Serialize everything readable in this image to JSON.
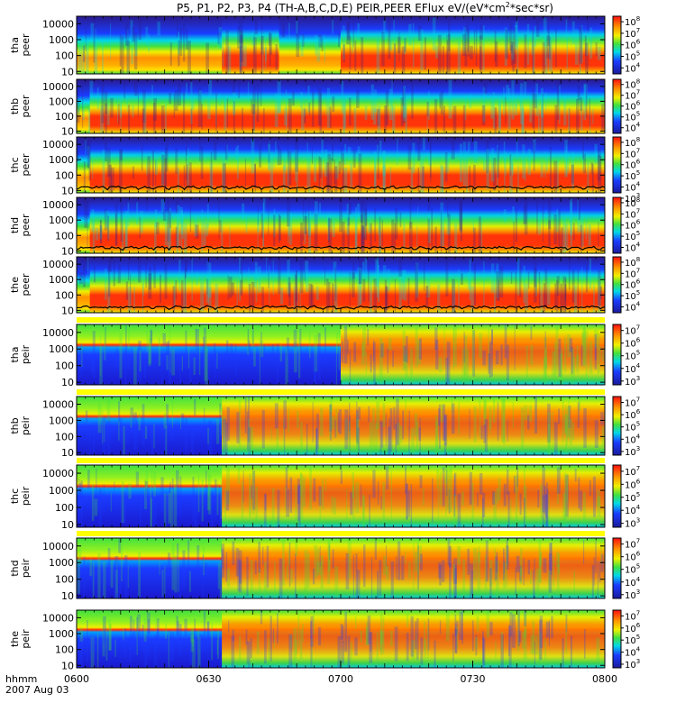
{
  "title": "P5, P1, P2, P3, P4 (TH-A,B,C,D,E) PEIR,PEER EFlux eV/(eV*cm^2*sec*sr)",
  "title_parts": {
    "main": "P5, P1, P2, P3, P4 (TH-A,B,C,D,E) PEIR,PEER EFlux eV/(eV*cm",
    "sup": "2",
    "tail": "*sec*sr)"
  },
  "time_axis": {
    "label": "hhmm",
    "date": "2007 Aug 03",
    "ticks": [
      "0600",
      "0630",
      "0700",
      "0730",
      "0800"
    ],
    "range_minutes": [
      0,
      120
    ]
  },
  "colors": {
    "low": "#2a1a8a",
    "blue": "#1a3cff",
    "cyan": "#00d8e8",
    "green": "#40e040",
    "yellow": "#f0f000",
    "orange": "#ff9000",
    "red": "#ff2a0a",
    "fill_band": "#ffff00"
  },
  "chart_data": {
    "type": "heatmap",
    "x_unit": "minutes after 0600 UT",
    "y_scale": "log",
    "y_unit": "eV",
    "z_scale": "log",
    "z_unit": "eV/(eV*cm^2*sec*sr)",
    "panels": [
      {
        "probe": "tha",
        "species": "peer",
        "label": [
          "tha",
          "peer"
        ],
        "ylim": [
          7,
          30000
        ],
        "yticks": [
          "10000",
          "1000",
          "100",
          "10"
        ],
        "zticks": [
          "10",
          "10",
          "10",
          "10",
          "10",
          "10"
        ],
        "zexp": [
          "8",
          "7",
          "6",
          "5",
          "4",
          ""
        ],
        "zlim": [
          3000,
          300000000
        ],
        "hot_intervals": [
          [
            33,
            46
          ],
          [
            60,
            120
          ]
        ],
        "overlay_line": false
      },
      {
        "probe": "thb",
        "species": "peer",
        "label": [
          "thb",
          "peer"
        ],
        "ylim": [
          7,
          30000
        ],
        "yticks": [
          "10000",
          "1000",
          "100",
          "10"
        ],
        "zticks": [
          "10",
          "10",
          "10",
          "10",
          "10",
          "10"
        ],
        "zexp": [
          "8",
          "7",
          "6",
          "5",
          "4",
          ""
        ],
        "zlim": [
          3000,
          300000000
        ],
        "hot_intervals": [
          [
            3,
            120
          ]
        ],
        "overlay_line": false
      },
      {
        "probe": "thc",
        "species": "peer",
        "label": [
          "thc",
          "peer"
        ],
        "ylim": [
          7,
          30000
        ],
        "yticks": [
          "10000",
          "1000",
          "100",
          "10"
        ],
        "zticks": [
          "10",
          "10",
          "10",
          "10",
          "10",
          "10"
        ],
        "zexp": [
          "8",
          "7",
          "6",
          "5",
          "4",
          "3"
        ],
        "zlim": [
          3000,
          300000000
        ],
        "hot_intervals": [
          [
            3,
            120
          ]
        ],
        "overlay_line": true
      },
      {
        "probe": "thd",
        "species": "peer",
        "label": [
          "thd",
          "peer"
        ],
        "ylim": [
          7,
          30000
        ],
        "yticks": [
          "10000",
          "1000",
          "100",
          "10"
        ],
        "zticks": [
          "10",
          "10",
          "10",
          "10",
          "10",
          "10"
        ],
        "zexp": [
          "8",
          "7",
          "6",
          "5",
          "4",
          ""
        ],
        "zlim": [
          3000,
          300000000
        ],
        "hot_intervals": [
          [
            3,
            120
          ]
        ],
        "overlay_line": true
      },
      {
        "probe": "the",
        "species": "peer",
        "label": [
          "the",
          "peer"
        ],
        "ylim": [
          7,
          30000
        ],
        "yticks": [
          "10000",
          "1000",
          "100",
          "10"
        ],
        "zticks": [
          "10",
          "10",
          "10",
          "10",
          "10",
          "10"
        ],
        "zexp": [
          "8",
          "7",
          "6",
          "5",
          "4",
          ""
        ],
        "zlim": [
          3000,
          300000000
        ],
        "hot_intervals": [
          [
            3,
            120
          ]
        ],
        "overlay_line": true
      },
      {
        "probe": "tha",
        "species": "peir",
        "label": [
          "tha",
          "peir"
        ],
        "ylim": [
          7,
          30000
        ],
        "yticks": [
          "10000",
          "1000",
          "100",
          "10"
        ],
        "zticks": [
          "10",
          "10",
          "10",
          "10",
          "10"
        ],
        "zexp": [
          "7",
          "6",
          "5",
          "4",
          "3"
        ],
        "zlim": [
          500,
          30000000
        ],
        "hot_intervals": [
          [
            60,
            120
          ]
        ],
        "top_band": true
      },
      {
        "probe": "thb",
        "species": "peir",
        "label": [
          "thb",
          "peir"
        ],
        "ylim": [
          7,
          30000
        ],
        "yticks": [
          "10000",
          "1000",
          "100",
          "10"
        ],
        "zticks": [
          "10",
          "10",
          "10",
          "10",
          "10"
        ],
        "zexp": [
          "7",
          "6",
          "5",
          "4",
          "3"
        ],
        "zlim": [
          500,
          30000000
        ],
        "hot_intervals": [
          [
            33,
            120
          ]
        ],
        "top_band": true
      },
      {
        "probe": "thc",
        "species": "peir",
        "label": [
          "thc",
          "peir"
        ],
        "ylim": [
          7,
          30000
        ],
        "yticks": [
          "10000",
          "1000",
          "100",
          "10"
        ],
        "zticks": [
          "10",
          "10",
          "10",
          "10",
          "10"
        ],
        "zexp": [
          "7",
          "6",
          "5",
          "4",
          "3"
        ],
        "zlim": [
          500,
          30000000
        ],
        "hot_intervals": [
          [
            33,
            120
          ]
        ],
        "top_band": true
      },
      {
        "probe": "thd",
        "species": "peir",
        "label": [
          "thd",
          "peir"
        ],
        "ylim": [
          7,
          30000
        ],
        "yticks": [
          "10000",
          "1000",
          "100",
          "10"
        ],
        "zticks": [
          "10",
          "10",
          "10",
          "10",
          "10"
        ],
        "zexp": [
          "7",
          "6",
          "5",
          "4",
          "3"
        ],
        "zlim": [
          500,
          30000000
        ],
        "hot_intervals": [
          [
            33,
            120
          ]
        ],
        "top_band": true
      },
      {
        "probe": "the",
        "species": "peir",
        "label": [
          "the",
          "peir"
        ],
        "ylim": [
          7,
          30000
        ],
        "yticks": [
          "10000",
          "1000",
          "100",
          "10"
        ],
        "zticks": [
          "10",
          "10",
          "10",
          "10",
          "10"
        ],
        "zexp": [
          "7",
          "6",
          "5",
          "4",
          "3"
        ],
        "zlim": [
          500,
          30000000
        ],
        "hot_intervals": [
          [
            33,
            120
          ]
        ],
        "top_band": false
      }
    ]
  }
}
